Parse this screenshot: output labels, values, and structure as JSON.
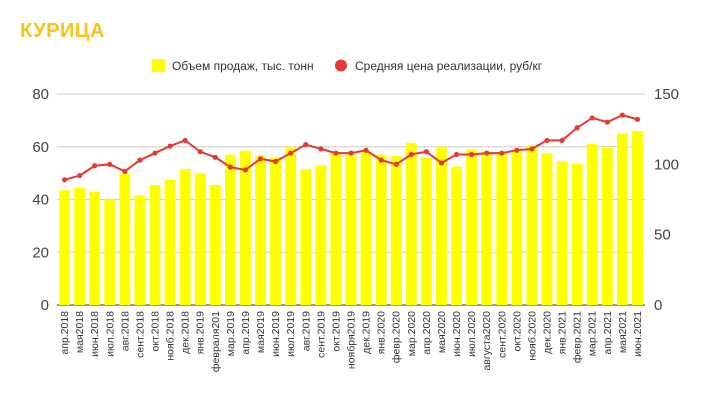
{
  "chart_data": {
    "type": "bar",
    "title": "КУРИЦА",
    "categories": [
      "апр.2018",
      "мая2018",
      "июн.2018",
      "июл.2018",
      "авг.2018",
      "сент.2018",
      "окт.2018",
      "нояб.2018",
      "дек.2018",
      "янв.2019",
      "февраля201",
      "мар.2019",
      "апр.2019",
      "мая2019",
      "июн.2019",
      "июл.2019",
      "авг.2019",
      "сент.2019",
      "окт.2019",
      "ноября2019",
      "дек.2019",
      "янв.2020",
      "февр.2020",
      "мар.2020",
      "апр.2020",
      "мая2020",
      "июн.2020",
      "июл.2020",
      "августа2020",
      "сент.2020",
      "окт.2020",
      "нояб.2020",
      "дек.2020",
      "янв.2021",
      "февр.2021",
      "мар.2021",
      "апр.2021",
      "мая2021",
      "июн.2021"
    ],
    "series": [
      {
        "name": "Объем продаж, тыс. тонн",
        "type": "bar",
        "axis": "left",
        "color": "#ffff00",
        "values": [
          43.5,
          44.5,
          43,
          40,
          50,
          41.5,
          45.5,
          47.5,
          51.5,
          50,
          45.5,
          57,
          58.5,
          56.5,
          56,
          60,
          51.5,
          53,
          58,
          57,
          58,
          57,
          56.5,
          61.5,
          56,
          60,
          52.5,
          59,
          58,
          57.5,
          58,
          60.5,
          57.5,
          54.5,
          53.5,
          61,
          59.5,
          65,
          66
        ]
      },
      {
        "name": "Средняя цена реализации, руб/кг",
        "type": "line",
        "axis": "right",
        "color": "#e53935",
        "values": [
          89,
          92,
          99,
          100,
          95,
          103,
          108,
          113,
          117,
          109,
          105,
          98,
          96,
          104,
          102,
          108,
          114,
          111,
          108,
          108,
          110,
          103,
          100,
          107,
          109,
          101,
          107,
          107,
          108,
          108,
          110,
          111,
          117,
          117,
          126,
          133,
          130,
          135,
          132
        ]
      }
    ],
    "y_left": {
      "min": 0,
      "max": 80,
      "ticks": [
        0,
        20,
        40,
        60,
        80
      ]
    },
    "y_right": {
      "min": 0,
      "max": 150,
      "ticks": [
        0,
        50,
        100,
        150
      ]
    },
    "legend_position": "top",
    "grid": true
  }
}
